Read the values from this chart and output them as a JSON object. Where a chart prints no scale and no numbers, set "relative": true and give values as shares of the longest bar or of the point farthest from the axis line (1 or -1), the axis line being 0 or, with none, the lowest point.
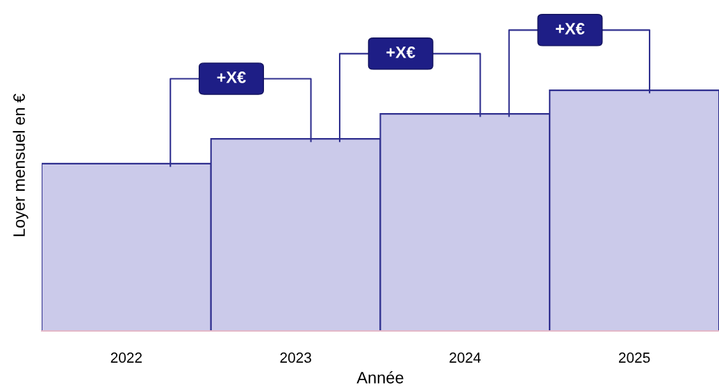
{
  "chart_data": {
    "type": "bar",
    "relative": true,
    "xlabel": "Année",
    "ylabel": "Loyer mensuel en €",
    "categories": [
      "2022",
      "2023",
      "2024",
      "2025"
    ],
    "values": [
      0.695,
      0.798,
      0.902,
      1
    ],
    "color": "#cbcaea",
    "annotations": [
      "+X€",
      "+X€",
      "+X€"
    ],
    "grid": false
  }
}
